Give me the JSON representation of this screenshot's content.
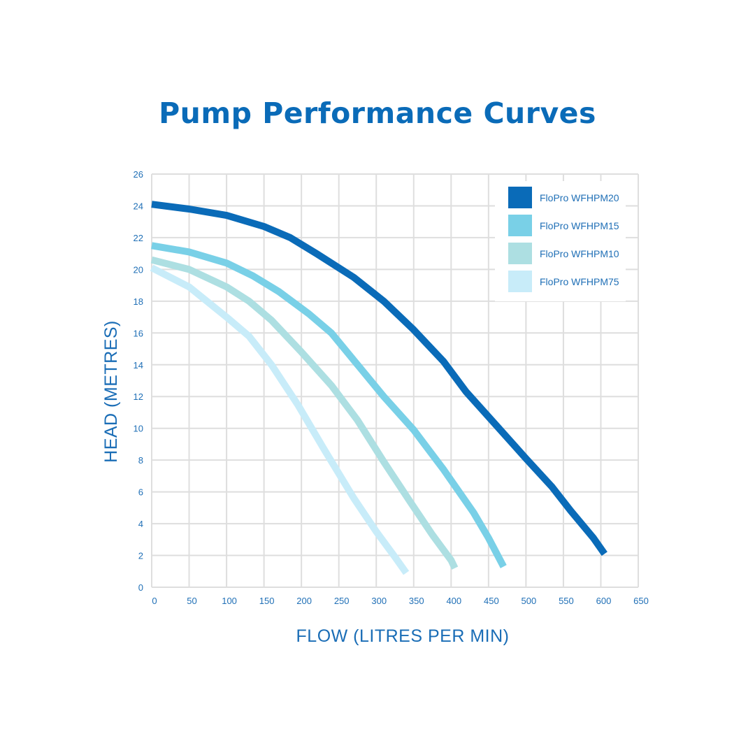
{
  "chart_data": {
    "type": "line",
    "title": "Pump Performance Curves",
    "xlabel": "FLOW (LITRES PER MIN)",
    "ylabel": "HEAD (METRES)",
    "xlim": [
      0,
      650
    ],
    "ylim": [
      0,
      26
    ],
    "x_ticks": [
      "0",
      "50",
      "100",
      "150",
      "200",
      "250",
      "300",
      "350",
      "400",
      "450",
      "500",
      "550",
      "600",
      "650"
    ],
    "y_ticks": [
      "0",
      "2",
      "4",
      "6",
      "8",
      "10",
      "12",
      "14",
      "16",
      "18",
      "20",
      "22",
      "24",
      "26"
    ],
    "grid": true,
    "legend_position": "top-right",
    "series": [
      {
        "name": "FloPro WFHPM20",
        "color": "#0a6bb8",
        "points": [
          [
            0,
            24.1
          ],
          [
            50,
            23.8
          ],
          [
            100,
            23.4
          ],
          [
            150,
            22.7
          ],
          [
            185,
            22.0
          ],
          [
            220,
            21.0
          ],
          [
            270,
            19.5
          ],
          [
            310,
            18.0
          ],
          [
            350,
            16.2
          ],
          [
            390,
            14.2
          ],
          [
            420,
            12.3
          ],
          [
            460,
            10.2
          ],
          [
            500,
            8.1
          ],
          [
            535,
            6.3
          ],
          [
            560,
            4.8
          ],
          [
            590,
            3.1
          ],
          [
            605,
            2.1
          ]
        ]
      },
      {
        "name": "FloPro WFHPM15",
        "color": "#79d0e7",
        "points": [
          [
            0,
            21.5
          ],
          [
            50,
            21.1
          ],
          [
            100,
            20.4
          ],
          [
            135,
            19.6
          ],
          [
            170,
            18.6
          ],
          [
            210,
            17.2
          ],
          [
            240,
            16.0
          ],
          [
            275,
            14.0
          ],
          [
            310,
            12.0
          ],
          [
            350,
            9.9
          ],
          [
            390,
            7.4
          ],
          [
            430,
            4.7
          ],
          [
            450,
            3.1
          ],
          [
            470,
            1.3
          ]
        ]
      },
      {
        "name": "FloPro WFHPM10",
        "color": "#addfe2",
        "points": [
          [
            0,
            20.6
          ],
          [
            50,
            20.0
          ],
          [
            100,
            18.9
          ],
          [
            130,
            18.0
          ],
          [
            160,
            16.8
          ],
          [
            200,
            14.8
          ],
          [
            240,
            12.7
          ],
          [
            275,
            10.5
          ],
          [
            310,
            7.9
          ],
          [
            345,
            5.4
          ],
          [
            375,
            3.3
          ],
          [
            400,
            1.7
          ],
          [
            405,
            1.2
          ]
        ]
      },
      {
        "name": "FloPro WFHPM75",
        "color": "#c8ecf9",
        "points": [
          [
            0,
            20.1
          ],
          [
            50,
            18.9
          ],
          [
            100,
            17.0
          ],
          [
            130,
            15.8
          ],
          [
            160,
            14.0
          ],
          [
            195,
            11.5
          ],
          [
            230,
            8.7
          ],
          [
            270,
            5.6
          ],
          [
            300,
            3.5
          ],
          [
            325,
            1.9
          ],
          [
            340,
            0.9
          ]
        ]
      }
    ]
  }
}
